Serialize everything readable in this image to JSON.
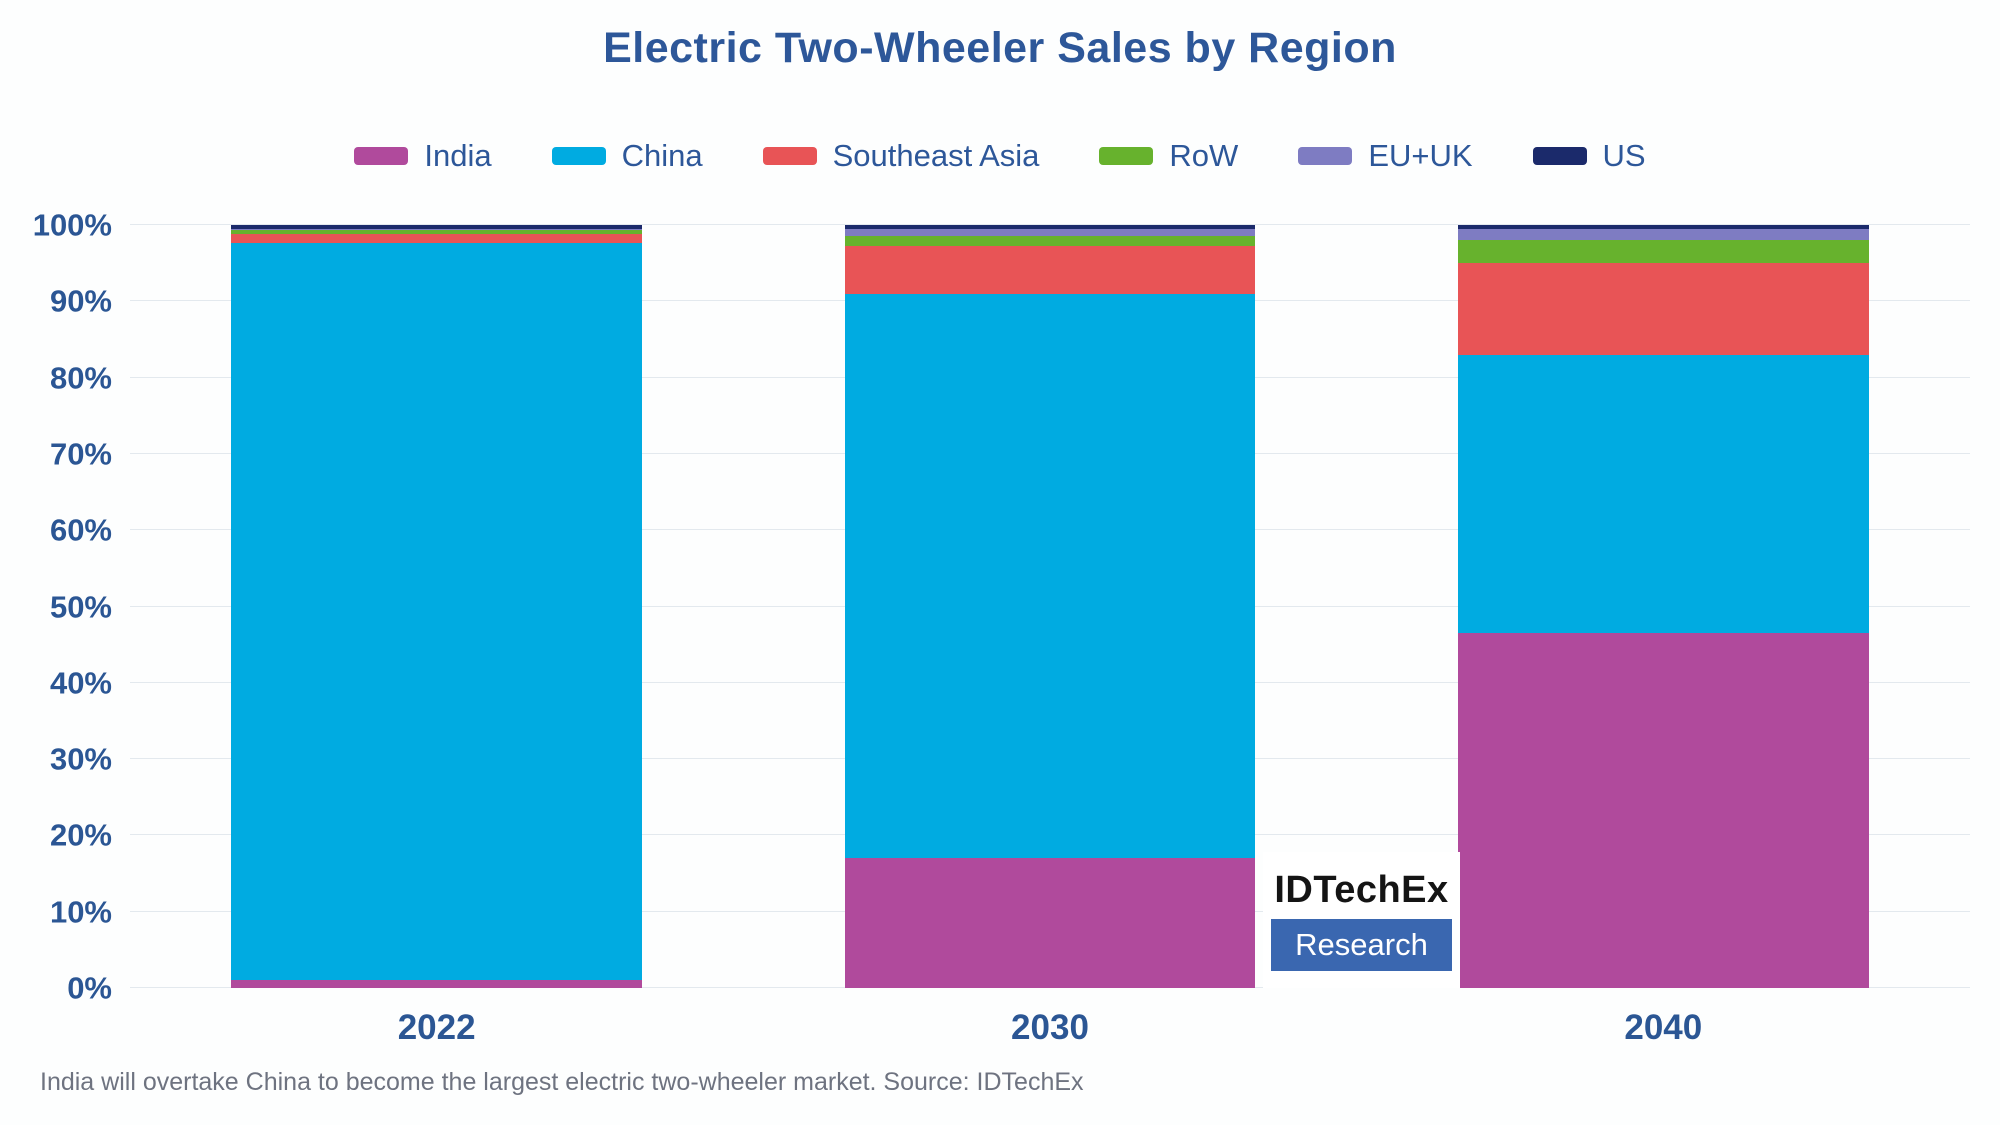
{
  "caption": "India will overtake China to become the largest electric two-wheeler market. Source: IDTechEx",
  "logo": {
    "line1": "IDTechEx",
    "line2": "Research"
  },
  "colors": {
    "title_text": "#2d5799",
    "axis_text": "#2b5694",
    "gridline": "#e3e9ee",
    "caption_text": "#6e7380",
    "logo_box": "#3a67b0",
    "background": "#fdfefe"
  },
  "chart_data": {
    "type": "bar",
    "stacked": true,
    "units": "percent",
    "title": "Electric Two-Wheeler Sales by Region",
    "xlabel": "",
    "ylabel": "",
    "ylim": [
      0,
      100
    ],
    "grid": true,
    "legend_position": "top",
    "categories": [
      "2022",
      "2030",
      "2040"
    ],
    "yticks": [
      "0%",
      "10%",
      "20%",
      "30%",
      "40%",
      "50%",
      "60%",
      "70%",
      "80%",
      "90%",
      "100%"
    ],
    "series": [
      {
        "name": "India",
        "color": "#b04a9c",
        "values": [
          1.0,
          17.0,
          46.5
        ]
      },
      {
        "name": "China",
        "color": "#00abe1",
        "values": [
          96.6,
          74.0,
          36.5
        ]
      },
      {
        "name": "Southeast Asia",
        "color": "#e85456",
        "values": [
          1.2,
          6.2,
          12.0
        ]
      },
      {
        "name": "RoW",
        "color": "#67b22d",
        "values": [
          0.5,
          1.3,
          3.0
        ]
      },
      {
        "name": "EU+UK",
        "color": "#7e7cc2",
        "values": [
          0.2,
          1.0,
          1.5
        ]
      },
      {
        "name": "US",
        "color": "#1b2a6b",
        "values": [
          0.5,
          0.5,
          0.5
        ]
      }
    ]
  }
}
